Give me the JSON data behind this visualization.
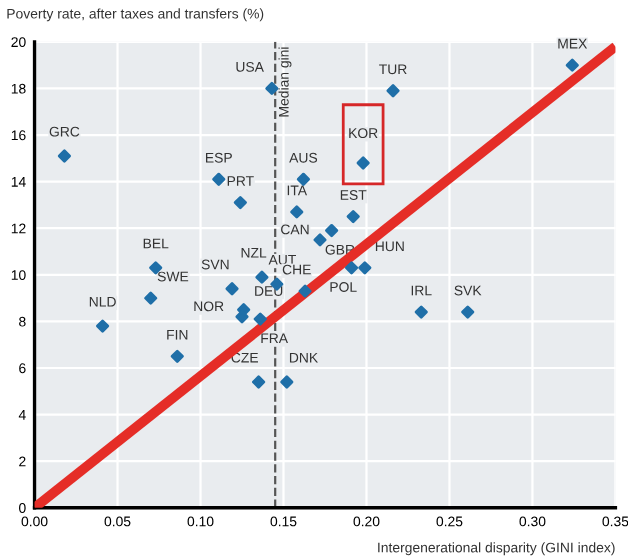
{
  "chart_data": {
    "type": "scatter",
    "ylabel": "Poverty rate, after taxes and transfers (%)",
    "xlabel": "Intergenerational disparity (GINI index)",
    "xlim": [
      0,
      0.35
    ],
    "ylim": [
      0,
      20
    ],
    "xticks": [
      {
        "value": 0,
        "label": "0.00"
      },
      {
        "value": 0.05,
        "label": "0.05"
      },
      {
        "value": 0.1,
        "label": "0.10"
      },
      {
        "value": 0.15,
        "label": "0.15"
      },
      {
        "value": 0.2,
        "label": "0.20"
      },
      {
        "value": 0.25,
        "label": "0.25"
      },
      {
        "value": 0.3,
        "label": "0.30"
      },
      {
        "value": 0.35,
        "label": "0.35"
      }
    ],
    "yticks": [
      0,
      2,
      4,
      6,
      8,
      10,
      12,
      14,
      16,
      18,
      20
    ],
    "grid": true,
    "series": [
      {
        "color": "#1f6fa8",
        "marker": "diamond",
        "x": [
          0.018,
          0.143,
          0.111,
          0.124,
          0.162,
          0.158,
          0.172,
          0.179,
          0.198,
          0.216,
          0.324,
          0.192,
          0.073,
          0.07,
          0.041,
          0.086,
          0.119,
          0.137,
          0.146,
          0.163,
          0.126,
          0.125,
          0.136,
          0.191,
          0.199,
          0.233,
          0.261,
          0.135,
          0.152
        ],
        "values": [
          15.1,
          18.0,
          14.1,
          13.1,
          14.1,
          12.7,
          11.5,
          11.9,
          14.8,
          17.9,
          19.0,
          12.5,
          10.3,
          9.0,
          7.8,
          6.5,
          9.4,
          9.9,
          9.6,
          9.3,
          8.5,
          8.2,
          8.1,
          10.3,
          10.3,
          8.4,
          8.4,
          5.4,
          5.4
        ],
        "value_labels": [
          "GRC",
          "USA",
          "ESP",
          "PRT",
          "AUS",
          "ITA",
          "CAN",
          "GBR",
          "KOR",
          "TUR",
          "MEX",
          "EST",
          "BEL",
          "SWE",
          "NLD",
          "FIN",
          "SVN",
          "NZL",
          "AUT",
          "CHE",
          "DEU",
          "NOR",
          "FRA",
          "POL",
          "HUN",
          "IRL",
          "SVK",
          "CZE",
          "DNK"
        ]
      },
      {
        "type": "line",
        "color": "#e52d27",
        "x": [
          0,
          0.35
        ],
        "values": [
          0,
          19.8
        ]
      }
    ],
    "ref_lines": [
      {
        "axis": "x",
        "value": 0.145,
        "label": "Median gini",
        "line_style": "dashed",
        "color": "#555555"
      }
    ]
  }
}
